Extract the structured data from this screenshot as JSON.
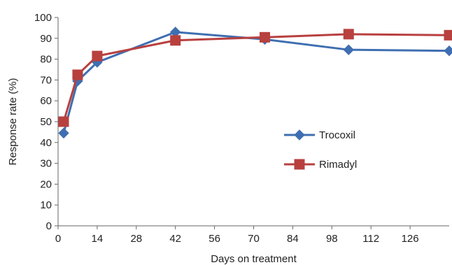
{
  "chart_data": {
    "type": "line",
    "xlabel": "Days on treatment",
    "ylabel": "Response rate (%)",
    "xlim": [
      0,
      140
    ],
    "ylim": [
      0,
      100
    ],
    "x_ticks": [
      0,
      14,
      28,
      42,
      56,
      70,
      84,
      98,
      112,
      126
    ],
    "y_ticks": [
      0,
      10,
      20,
      30,
      40,
      50,
      60,
      70,
      80,
      90,
      100
    ],
    "grid": false,
    "legend_position": "right-center",
    "series": [
      {
        "name": "Trocoxil",
        "color": "#3f6fb1",
        "marker": "diamond",
        "x": [
          2,
          7,
          14,
          42,
          74,
          104,
          140
        ],
        "y": [
          44.5,
          69.5,
          78.5,
          93,
          89.5,
          84.5,
          84
        ]
      },
      {
        "name": "Rimadyl",
        "color": "#b8403f",
        "marker": "square",
        "x": [
          2,
          7,
          14,
          42,
          74,
          104,
          140
        ],
        "y": [
          50,
          72.5,
          81.5,
          89,
          90.5,
          92,
          91.5
        ]
      }
    ]
  }
}
